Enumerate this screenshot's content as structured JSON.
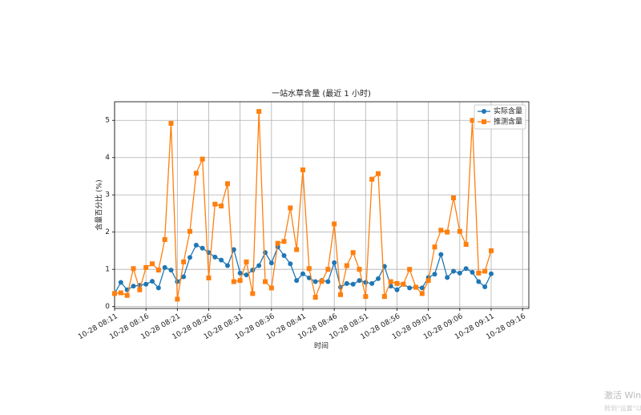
{
  "chart_data": {
    "type": "line",
    "title": "一站水草含量 (最近 1 小时)",
    "x_label": "时间",
    "y_label": "含量百分比 (%)",
    "x": [
      "10-28 08:11",
      "10-28 08:12",
      "10-28 08:13",
      "10-28 08:14",
      "10-28 08:15",
      "10-28 08:16",
      "10-28 08:17",
      "10-28 08:18",
      "10-28 08:19",
      "10-28 08:20",
      "10-28 08:21",
      "10-28 08:22",
      "10-28 08:23",
      "10-28 08:24",
      "10-28 08:25",
      "10-28 08:26",
      "10-28 08:27",
      "10-28 08:28",
      "10-28 08:29",
      "10-28 08:30",
      "10-28 08:31",
      "10-28 08:32",
      "10-28 08:33",
      "10-28 08:34",
      "10-28 08:35",
      "10-28 08:36",
      "10-28 08:37",
      "10-28 08:38",
      "10-28 08:39",
      "10-28 08:40",
      "10-28 08:41",
      "10-28 08:42",
      "10-28 08:43",
      "10-28 08:44",
      "10-28 08:45",
      "10-28 08:46",
      "10-28 08:47",
      "10-28 08:48",
      "10-28 08:49",
      "10-28 08:50",
      "10-28 08:51",
      "10-28 08:52",
      "10-28 08:53",
      "10-28 08:54",
      "10-28 08:55",
      "10-28 08:56",
      "10-28 08:57",
      "10-28 08:58",
      "10-28 08:59",
      "10-28 09:00",
      "10-28 09:01",
      "10-28 09:02",
      "10-28 09:03",
      "10-28 09:04",
      "10-28 09:05",
      "10-28 09:06",
      "10-28 09:07",
      "10-28 09:08",
      "10-28 09:09",
      "10-28 09:10",
      "10-28 09:11"
    ],
    "series": [
      {
        "name": "实际含量",
        "color": "#1f77b4",
        "marker": "circle",
        "values": [
          0.35,
          0.65,
          0.45,
          0.55,
          0.57,
          0.6,
          0.68,
          0.5,
          1.05,
          0.98,
          0.67,
          0.8,
          1.32,
          1.65,
          1.57,
          1.45,
          1.33,
          1.25,
          1.1,
          1.53,
          0.9,
          0.85,
          0.98,
          1.1,
          1.45,
          1.17,
          1.6,
          1.37,
          1.15,
          0.7,
          0.88,
          0.77,
          0.67,
          0.7,
          0.67,
          1.18,
          0.52,
          0.62,
          0.6,
          0.7,
          0.65,
          0.62,
          0.75,
          1.08,
          0.55,
          0.45,
          0.6,
          0.5,
          0.52,
          0.5,
          0.78,
          0.87,
          1.4,
          0.78,
          0.95,
          0.9,
          1.02,
          0.92,
          0.67,
          0.53,
          0.88
        ]
      },
      {
        "name": "推测含量",
        "color": "#ff7f0e",
        "marker": "square",
        "values": [
          0.35,
          0.37,
          0.3,
          1.02,
          0.45,
          1.05,
          1.15,
          0.98,
          1.8,
          4.92,
          0.2,
          1.2,
          2.02,
          3.58,
          3.96,
          0.77,
          2.75,
          2.7,
          3.3,
          0.67,
          0.7,
          1.2,
          0.35,
          5.24,
          0.67,
          0.5,
          1.7,
          1.75,
          2.65,
          1.53,
          3.67,
          1.02,
          0.25,
          0.68,
          1.0,
          2.22,
          0.32,
          1.1,
          1.45,
          1.0,
          0.27,
          3.42,
          3.57,
          0.27,
          0.67,
          0.62,
          0.6,
          1.0,
          0.52,
          0.35,
          0.7,
          1.6,
          2.05,
          2.0,
          2.92,
          2.02,
          1.67,
          5.0,
          0.9,
          0.95,
          1.5
        ]
      }
    ],
    "xlim": [
      "10-28 08:11",
      "10-28 09:17"
    ],
    "xticks": [
      "10-28 08:11",
      "10-28 08:16",
      "10-28 08:21",
      "10-28 08:26",
      "10-28 08:31",
      "10-28 08:36",
      "10-28 08:41",
      "10-28 08:46",
      "10-28 08:51",
      "10-28 08:56",
      "10-28 09:01",
      "10-28 09:06",
      "10-28 09:11",
      "10-28 09:16"
    ],
    "ylim": [
      -0.05,
      5.5
    ],
    "yticks": [
      0,
      1,
      2,
      3,
      4,
      5
    ],
    "grid": true,
    "legend": "upper right"
  },
  "overlay": {
    "line1": "激活 Win",
    "line2": "转到\"设置\"以"
  }
}
